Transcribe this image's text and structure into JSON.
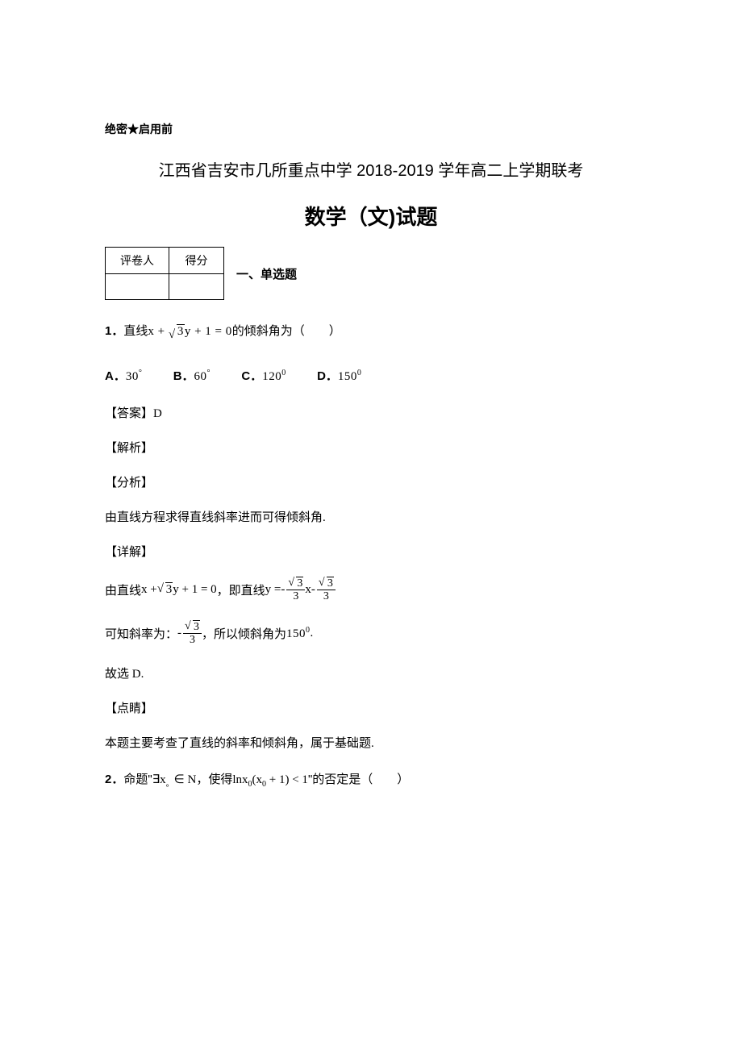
{
  "confidential": "绝密★启用前",
  "title1": "江西省吉安市几所重点中学 2018-2019 学年高二上学期联考",
  "title2": "数学（文)试题",
  "grade_table": {
    "headers": [
      "评卷人",
      "得分"
    ]
  },
  "section_label": "一、单选题",
  "q1": {
    "num": "1",
    "punct": "．",
    "pre": "直线",
    "expr_x": "x + ",
    "expr_sqrt": "3",
    "expr_rest": "y + 1 = 0",
    "post": "的倾斜角为（　　）",
    "options": {
      "a_label": "A．",
      "a_val": "30",
      "a_deg": "°",
      "b_label": "B．",
      "b_val": "60",
      "b_deg": "°",
      "c_label": "C．",
      "c_val": "120",
      "c_deg": "0",
      "d_label": "D．",
      "d_val": "150",
      "d_deg": "0"
    },
    "answer_label": "【答案】",
    "answer": "D",
    "analysis_label": "【解析】",
    "fenxi_label": "【分析】",
    "fenxi_text": "由直线方程求得直线斜率进而可得倾斜角.",
    "detail_label": "【详解】",
    "detail_line1_pre": "由直线",
    "detail_line1_x": "x + ",
    "detail_line1_sqrt": "3",
    "detail_line1_rest": "y + 1 = 0",
    "detail_line1_mid": "，即直线",
    "detail_line1_eq": "y = ",
    "detail_line1_num1": "3",
    "detail_line1_den1": "3",
    "detail_line1_mid2": "x ",
    "detail_line1_num2": "3",
    "detail_line1_den2": "3",
    "detail_line2_pre": "可知斜率为：",
    "detail_line2_num": "3",
    "detail_line2_den": "3",
    "detail_line2_post": "，所以倾斜角为",
    "detail_line2_val": "150",
    "detail_line2_deg": "0",
    "detail_line2_end": ".",
    "conclude": "故选 D.",
    "dianjing_label": "【点睛】",
    "dianjing_text": "本题主要考查了直线的斜率和倾斜角，属于基础题."
  },
  "q2": {
    "num": "2",
    "punct": "．",
    "pre": "命题\"",
    "exists": "∃x",
    "sub0": "。",
    "in": "∈ N",
    "mid": "，使得",
    "ln": "lnx",
    "s0": "0",
    "paren": "(x",
    "s1": "0",
    "rest": " + 1) < 1",
    "post": "\"的否定是（　　）"
  }
}
